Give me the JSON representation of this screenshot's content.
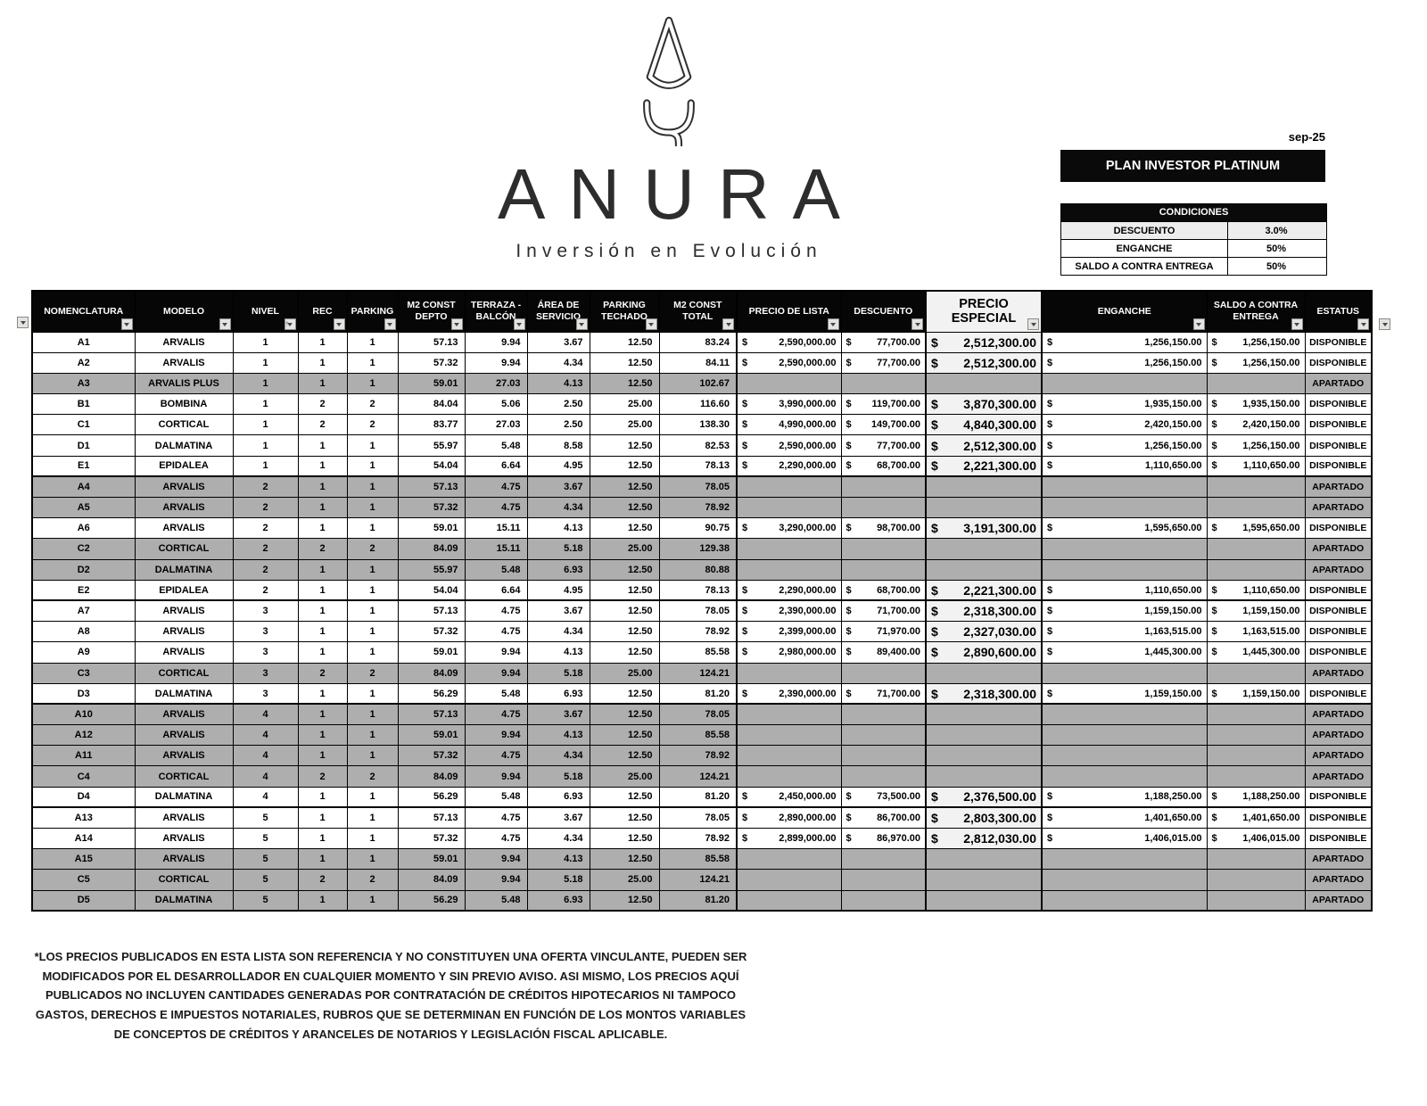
{
  "date": "sep-25",
  "plan_title": "PLAN INVESTOR PLATINUM",
  "currency": "$",
  "logo": {
    "brand": "ANURA",
    "tagline": "Inversión en Evolución"
  },
  "conditions": {
    "title": "CONDICIONES",
    "rows": [
      {
        "label": "DESCUENTO",
        "value": "3.0%"
      },
      {
        "label": "ENGANCHE",
        "value": "50%"
      },
      {
        "label": "SALDO A CONTRA ENTREGA",
        "value": "50%"
      }
    ]
  },
  "table": {
    "columns": [
      {
        "id": "nomenclatura",
        "lines": [
          "NOMENCLATURA"
        ],
        "filter": true
      },
      {
        "id": "modelo",
        "lines": [
          "MODELO"
        ],
        "filter": true
      },
      {
        "id": "nivel",
        "lines": [
          "NIVEL"
        ],
        "filter": true,
        "sort": true
      },
      {
        "id": "rec",
        "lines": [
          "REC"
        ],
        "filter": true
      },
      {
        "id": "parking",
        "lines": [
          "PARKING"
        ],
        "filter": true
      },
      {
        "id": "m2-const-depto",
        "lines": [
          "M2 CONST",
          "DEPTO"
        ],
        "filter": true
      },
      {
        "id": "terraza-balcon",
        "lines": [
          "TERRAZA -",
          "BALCÓN"
        ],
        "filter": true
      },
      {
        "id": "area-servicio",
        "lines": [
          "ÁREA DE",
          "SERVICIO"
        ],
        "filter": true
      },
      {
        "id": "parking-techado",
        "lines": [
          "PARKING",
          "TECHADO"
        ],
        "filter": true
      },
      {
        "id": "m2-const-total",
        "lines": [
          "M2 CONST",
          "TOTAL"
        ],
        "filter": true
      },
      {
        "id": "precio-lista",
        "lines": [
          "PRECIO DE LISTA"
        ],
        "filter": true
      },
      {
        "id": "descuento",
        "lines": [
          "DESCUENTO"
        ],
        "filter": true
      },
      {
        "id": "precio-especial",
        "lines": [
          "PRECIO ESPECIAL"
        ],
        "filter": true,
        "special": true
      },
      {
        "id": "enganche",
        "lines": [
          "ENGANCHE"
        ],
        "filter": true
      },
      {
        "id": "saldo-contra-entrega",
        "lines": [
          "SALDO A CONTRA",
          "ENTREGA"
        ],
        "filter": true
      },
      {
        "id": "estatus",
        "lines": [
          "ESTATUS"
        ],
        "filter": true
      }
    ],
    "money_columns": [
      10,
      11,
      12,
      13,
      14
    ],
    "rows": [
      {
        "cells": [
          "A1",
          "ARVALIS",
          "1",
          "1",
          "1",
          "57.13",
          "9.94",
          "3.67",
          "12.50",
          "83.24",
          "2,590,000.00",
          "77,700.00",
          "2,512,300.00",
          "1,256,150.00",
          "1,256,150.00",
          "DISPONIBLE"
        ],
        "shaded": false,
        "group_start": false
      },
      {
        "cells": [
          "A2",
          "ARVALIS",
          "1",
          "1",
          "1",
          "57.32",
          "9.94",
          "4.34",
          "12.50",
          "84.11",
          "2,590,000.00",
          "77,700.00",
          "2,512,300.00",
          "1,256,150.00",
          "1,256,150.00",
          "DISPONIBLE"
        ],
        "shaded": false,
        "group_start": false
      },
      {
        "cells": [
          "A3",
          "ARVALIS PLUS",
          "1",
          "1",
          "1",
          "59.01",
          "27.03",
          "4.13",
          "12.50",
          "102.67",
          "",
          "",
          "",
          "",
          "",
          "APARTADO"
        ],
        "shaded": true,
        "group_start": false
      },
      {
        "cells": [
          "B1",
          "BOMBINA",
          "1",
          "2",
          "2",
          "84.04",
          "5.06",
          "2.50",
          "25.00",
          "116.60",
          "3,990,000.00",
          "119,700.00",
          "3,870,300.00",
          "1,935,150.00",
          "1,935,150.00",
          "DISPONIBLE"
        ],
        "shaded": false,
        "group_start": false
      },
      {
        "cells": [
          "C1",
          "CORTICAL",
          "1",
          "2",
          "2",
          "83.77",
          "27.03",
          "2.50",
          "25.00",
          "138.30",
          "4,990,000.00",
          "149,700.00",
          "4,840,300.00",
          "2,420,150.00",
          "2,420,150.00",
          "DISPONIBLE"
        ],
        "shaded": false,
        "group_start": false
      },
      {
        "cells": [
          "D1",
          "DALMATINA",
          "1",
          "1",
          "1",
          "55.97",
          "5.48",
          "8.58",
          "12.50",
          "82.53",
          "2,590,000.00",
          "77,700.00",
          "2,512,300.00",
          "1,256,150.00",
          "1,256,150.00",
          "DISPONIBLE"
        ],
        "shaded": false,
        "group_start": false
      },
      {
        "cells": [
          "E1",
          "EPIDALEA",
          "1",
          "1",
          "1",
          "54.04",
          "6.64",
          "4.95",
          "12.50",
          "78.13",
          "2,290,000.00",
          "68,700.00",
          "2,221,300.00",
          "1,110,650.00",
          "1,110,650.00",
          "DISPONIBLE"
        ],
        "shaded": false,
        "group_start": false
      },
      {
        "cells": [
          "A4",
          "ARVALIS",
          "2",
          "1",
          "1",
          "57.13",
          "4.75",
          "3.67",
          "12.50",
          "78.05",
          "",
          "",
          "",
          "",
          "",
          "APARTADO"
        ],
        "shaded": true,
        "group_start": true
      },
      {
        "cells": [
          "A5",
          "ARVALIS",
          "2",
          "1",
          "1",
          "57.32",
          "4.75",
          "4.34",
          "12.50",
          "78.92",
          "",
          "",
          "",
          "",
          "",
          "APARTADO"
        ],
        "shaded": true,
        "group_start": false
      },
      {
        "cells": [
          "A6",
          "ARVALIS",
          "2",
          "1",
          "1",
          "59.01",
          "15.11",
          "4.13",
          "12.50",
          "90.75",
          "3,290,000.00",
          "98,700.00",
          "3,191,300.00",
          "1,595,650.00",
          "1,595,650.00",
          "DISPONIBLE"
        ],
        "shaded": false,
        "group_start": false
      },
      {
        "cells": [
          "C2",
          "CORTICAL",
          "2",
          "2",
          "2",
          "84.09",
          "15.11",
          "5.18",
          "25.00",
          "129.38",
          "",
          "",
          "",
          "",
          "",
          "APARTADO"
        ],
        "shaded": true,
        "group_start": false
      },
      {
        "cells": [
          "D2",
          "DALMATINA",
          "2",
          "1",
          "1",
          "55.97",
          "5.48",
          "6.93",
          "12.50",
          "80.88",
          "",
          "",
          "",
          "",
          "",
          "APARTADO"
        ],
        "shaded": true,
        "group_start": false
      },
      {
        "cells": [
          "E2",
          "EPIDALEA",
          "2",
          "1",
          "1",
          "54.04",
          "6.64",
          "4.95",
          "12.50",
          "78.13",
          "2,290,000.00",
          "68,700.00",
          "2,221,300.00",
          "1,110,650.00",
          "1,110,650.00",
          "DISPONIBLE"
        ],
        "shaded": false,
        "group_start": false
      },
      {
        "cells": [
          "A7",
          "ARVALIS",
          "3",
          "1",
          "1",
          "57.13",
          "4.75",
          "3.67",
          "12.50",
          "78.05",
          "2,390,000.00",
          "71,700.00",
          "2,318,300.00",
          "1,159,150.00",
          "1,159,150.00",
          "DISPONIBLE"
        ],
        "shaded": false,
        "group_start": true
      },
      {
        "cells": [
          "A8",
          "ARVALIS",
          "3",
          "1",
          "1",
          "57.32",
          "4.75",
          "4.34",
          "12.50",
          "78.92",
          "2,399,000.00",
          "71,970.00",
          "2,327,030.00",
          "1,163,515.00",
          "1,163,515.00",
          "DISPONIBLE"
        ],
        "shaded": false,
        "group_start": false
      },
      {
        "cells": [
          "A9",
          "ARVALIS",
          "3",
          "1",
          "1",
          "59.01",
          "9.94",
          "4.13",
          "12.50",
          "85.58",
          "2,980,000.00",
          "89,400.00",
          "2,890,600.00",
          "1,445,300.00",
          "1,445,300.00",
          "DISPONIBLE"
        ],
        "shaded": false,
        "group_start": false
      },
      {
        "cells": [
          "C3",
          "CORTICAL",
          "3",
          "2",
          "2",
          "84.09",
          "9.94",
          "5.18",
          "25.00",
          "124.21",
          "",
          "",
          "",
          "",
          "",
          "APARTADO"
        ],
        "shaded": true,
        "group_start": false
      },
      {
        "cells": [
          "D3",
          "DALMATINA",
          "3",
          "1",
          "1",
          "56.29",
          "5.48",
          "6.93",
          "12.50",
          "81.20",
          "2,390,000.00",
          "71,700.00",
          "2,318,300.00",
          "1,159,150.00",
          "1,159,150.00",
          "DISPONIBLE"
        ],
        "shaded": false,
        "group_start": false
      },
      {
        "cells": [
          "A10",
          "ARVALIS",
          "4",
          "1",
          "1",
          "57.13",
          "4.75",
          "3.67",
          "12.50",
          "78.05",
          "",
          "",
          "",
          "",
          "",
          "APARTADO"
        ],
        "shaded": true,
        "group_start": true
      },
      {
        "cells": [
          "A12",
          "ARVALIS",
          "4",
          "1",
          "1",
          "59.01",
          "9.94",
          "4.13",
          "12.50",
          "85.58",
          "",
          "",
          "",
          "",
          "",
          "APARTADO"
        ],
        "shaded": true,
        "group_start": false
      },
      {
        "cells": [
          "A11",
          "ARVALIS",
          "4",
          "1",
          "1",
          "57.32",
          "4.75",
          "4.34",
          "12.50",
          "78.92",
          "",
          "",
          "",
          "",
          "",
          "APARTADO"
        ],
        "shaded": true,
        "group_start": false
      },
      {
        "cells": [
          "C4",
          "CORTICAL",
          "4",
          "2",
          "2",
          "84.09",
          "9.94",
          "5.18",
          "25.00",
          "124.21",
          "",
          "",
          "",
          "",
          "",
          "APARTADO"
        ],
        "shaded": true,
        "group_start": false
      },
      {
        "cells": [
          "D4",
          "DALMATINA",
          "4",
          "1",
          "1",
          "56.29",
          "5.48",
          "6.93",
          "12.50",
          "81.20",
          "2,450,000.00",
          "73,500.00",
          "2,376,500.00",
          "1,188,250.00",
          "1,188,250.00",
          "DISPONIBLE"
        ],
        "shaded": false,
        "group_start": false
      },
      {
        "cells": [
          "A13",
          "ARVALIS",
          "5",
          "1",
          "1",
          "57.13",
          "4.75",
          "3.67",
          "12.50",
          "78.05",
          "2,890,000.00",
          "86,700.00",
          "2,803,300.00",
          "1,401,650.00",
          "1,401,650.00",
          "DISPONIBLE"
        ],
        "shaded": false,
        "group_start": true
      },
      {
        "cells": [
          "A14",
          "ARVALIS",
          "5",
          "1",
          "1",
          "57.32",
          "4.75",
          "4.34",
          "12.50",
          "78.92",
          "2,899,000.00",
          "86,970.00",
          "2,812,030.00",
          "1,406,015.00",
          "1,406,015.00",
          "DISPONIBLE"
        ],
        "shaded": false,
        "group_start": false
      },
      {
        "cells": [
          "A15",
          "ARVALIS",
          "5",
          "1",
          "1",
          "59.01",
          "9.94",
          "4.13",
          "12.50",
          "85.58",
          "",
          "",
          "",
          "",
          "",
          "APARTADO"
        ],
        "shaded": true,
        "group_start": false
      },
      {
        "cells": [
          "C5",
          "CORTICAL",
          "5",
          "2",
          "2",
          "84.09",
          "9.94",
          "5.18",
          "25.00",
          "124.21",
          "",
          "",
          "",
          "",
          "",
          "APARTADO"
        ],
        "shaded": true,
        "group_start": false
      },
      {
        "cells": [
          "D5",
          "DALMATINA",
          "5",
          "1",
          "1",
          "56.29",
          "5.48",
          "6.93",
          "12.50",
          "81.20",
          "",
          "",
          "",
          "",
          "",
          "APARTADO"
        ],
        "shaded": true,
        "group_start": false
      }
    ]
  },
  "disclaimer": "*LOS PRECIOS PUBLICADOS EN ESTA LISTA SON REFERENCIA Y NO CONSTITUYEN UNA OFERTA VINCULANTE, PUEDEN SER MODIFICADOS POR EL DESARROLLADOR EN CUALQUIER MOMENTO Y SIN PREVIO AVISO. ASI MISMO, LOS PRECIOS AQUÍ PUBLICADOS NO INCLUYEN CANTIDADES GENERADAS POR CONTRATACIÓN DE CRÉDITOS HIPOTECARIOS NI TAMPOCO GASTOS, DERECHOS E IMPUESTOS NOTARIALES, RUBROS QUE SE DETERMINAN EN FUNCIÓN DE LOS MONTOS VARIABLES DE CONCEPTOS DE CRÉDITOS Y ARANCELES DE NOTARIOS Y LEGISLACIÓN FISCAL APLICABLE."
}
